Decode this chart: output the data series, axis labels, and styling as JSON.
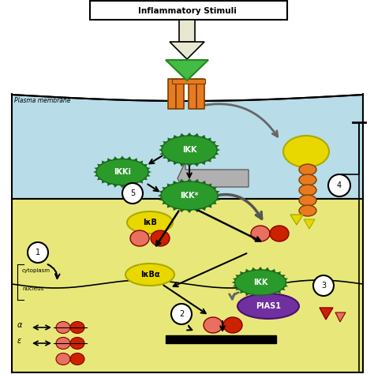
{
  "title": "Inflammatory Stimuli",
  "plasma_membrane_label": "Plasma membrane",
  "cytoplasm_label": "cytoplasm",
  "nucleus_label": "nucleus",
  "labels": {
    "IKK_top": "IKK",
    "IKKi": "IKKi",
    "IKK_star": "IKK*",
    "IkB": "IκB",
    "IkBa": "IκBα",
    "IKK_nucleus": "IKK",
    "PIAS1": "PIAS1",
    "alpha": "α",
    "epsilon": "ε"
  },
  "bg_color": "#ffffff",
  "cell_bg": "#b8dce8",
  "nuc_bg": "#e8e87a",
  "green_dark": "#1a6a1a",
  "green_mid": "#2a9a2a",
  "yellow_color": "#e8d800",
  "orange_color": "#e87a20",
  "red_color": "#cc2200",
  "salmon_color": "#e87060",
  "purple_color": "#7030a0",
  "gray_color": "#909090",
  "black": "#000000",
  "white": "#ffffff"
}
